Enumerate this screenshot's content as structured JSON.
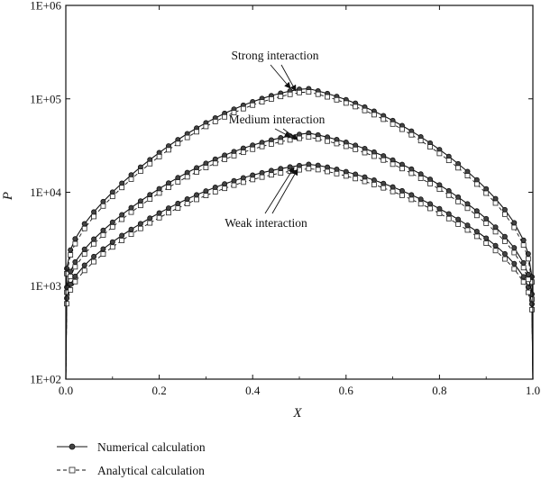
{
  "chart_data": {
    "type": "line",
    "title": "",
    "xlabel": "X",
    "ylabel": "P",
    "xlim": [
      0,
      1
    ],
    "ylim": [
      100,
      1000000
    ],
    "yscale": "log",
    "grid": false,
    "legend_position": "bottom-left",
    "x_ticks": [
      0,
      0.2,
      0.4,
      0.6,
      0.8,
      1
    ],
    "x_tick_labels": [
      "0.0",
      "0.2",
      "0.4",
      "0.6",
      "0.8",
      "1.0"
    ],
    "y_ticks": [
      100,
      1000,
      10000,
      100000,
      1000000
    ],
    "y_tick_labels": [
      "1E+02",
      "1E+03",
      "1E+04",
      "1E+05",
      "1E+06"
    ],
    "x": [
      0.002,
      0.01,
      0.02,
      0.04,
      0.06,
      0.08,
      0.1,
      0.12,
      0.14,
      0.16,
      0.18,
      0.2,
      0.22,
      0.24,
      0.26,
      0.28,
      0.3,
      0.32,
      0.34,
      0.36,
      0.38,
      0.4,
      0.42,
      0.44,
      0.46,
      0.48,
      0.5,
      0.52,
      0.54,
      0.56,
      0.58,
      0.6,
      0.62,
      0.64,
      0.66,
      0.68,
      0.7,
      0.72,
      0.74,
      0.76,
      0.78,
      0.8,
      0.82,
      0.84,
      0.86,
      0.88,
      0.9,
      0.92,
      0.94,
      0.96,
      0.98,
      0.99,
      0.998
    ],
    "groups": [
      {
        "label": "Strong interaction",
        "peak_x": 0.515,
        "numerical_peak": 130000,
        "analytical_peak": 120000,
        "numerical_end": 300,
        "analytical_end": 260
      },
      {
        "label": "Medium interaction",
        "peak_x": 0.52,
        "numerical_peak": 43000,
        "analytical_peak": 39000,
        "numerical_end": 240,
        "analytical_end": 210
      },
      {
        "label": "Weak interaction",
        "peak_x": 0.525,
        "numerical_peak": 20000,
        "analytical_peak": 18000,
        "numerical_end": 220,
        "analytical_end": 190
      }
    ],
    "series_styles": [
      {
        "name": "Numerical calculation",
        "line": "solid",
        "marker": "circle"
      },
      {
        "name": "Analytical calculation",
        "line": "dashed",
        "marker": "square"
      }
    ],
    "annotations": [
      {
        "text": "Strong interaction",
        "group": 0
      },
      {
        "text": "Medium interaction",
        "group": 1
      },
      {
        "text": "Weak interaction",
        "group": 2
      }
    ],
    "legend": [
      "Numerical calculation",
      "Analytical calculation"
    ]
  }
}
